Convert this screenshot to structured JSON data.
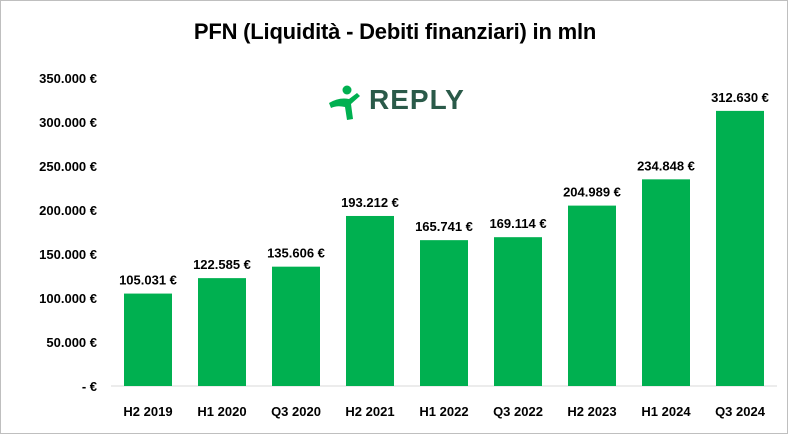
{
  "chart_data": {
    "type": "bar",
    "title": "PFN (Liquidità  - Debiti finanziari) in mln",
    "categories": [
      "H2 2019",
      "H1 2020",
      "Q3 2020",
      "H2 2021",
      "H1 2022",
      "Q3 2022",
      "H2 2023",
      "H1 2024",
      "Q3 2024"
    ],
    "values": [
      105031,
      122585,
      135606,
      193212,
      165741,
      169114,
      204989,
      234848,
      312630
    ],
    "value_labels": [
      "105.031 €",
      "122.585 €",
      "135.606 €",
      "193.212 €",
      "165.741 €",
      "169.114 €",
      "204.989 €",
      "234.848 €",
      "312.630 €"
    ],
    "ylim": [
      0,
      350000
    ],
    "yticks": [
      0,
      50000,
      100000,
      150000,
      200000,
      250000,
      300000,
      350000
    ],
    "ytick_labels": [
      "-  €",
      "50.000 €",
      "100.000 €",
      "150.000 €",
      "200.000 €",
      "250.000 €",
      "300.000 €",
      "350.000 €"
    ],
    "xlabel": "",
    "ylabel": "",
    "grid": false,
    "legend": "none",
    "bar_color": "#00b050"
  },
  "logo": {
    "text": "REPLY",
    "color": "#2a5a49",
    "icon": "running-figure-icon"
  }
}
